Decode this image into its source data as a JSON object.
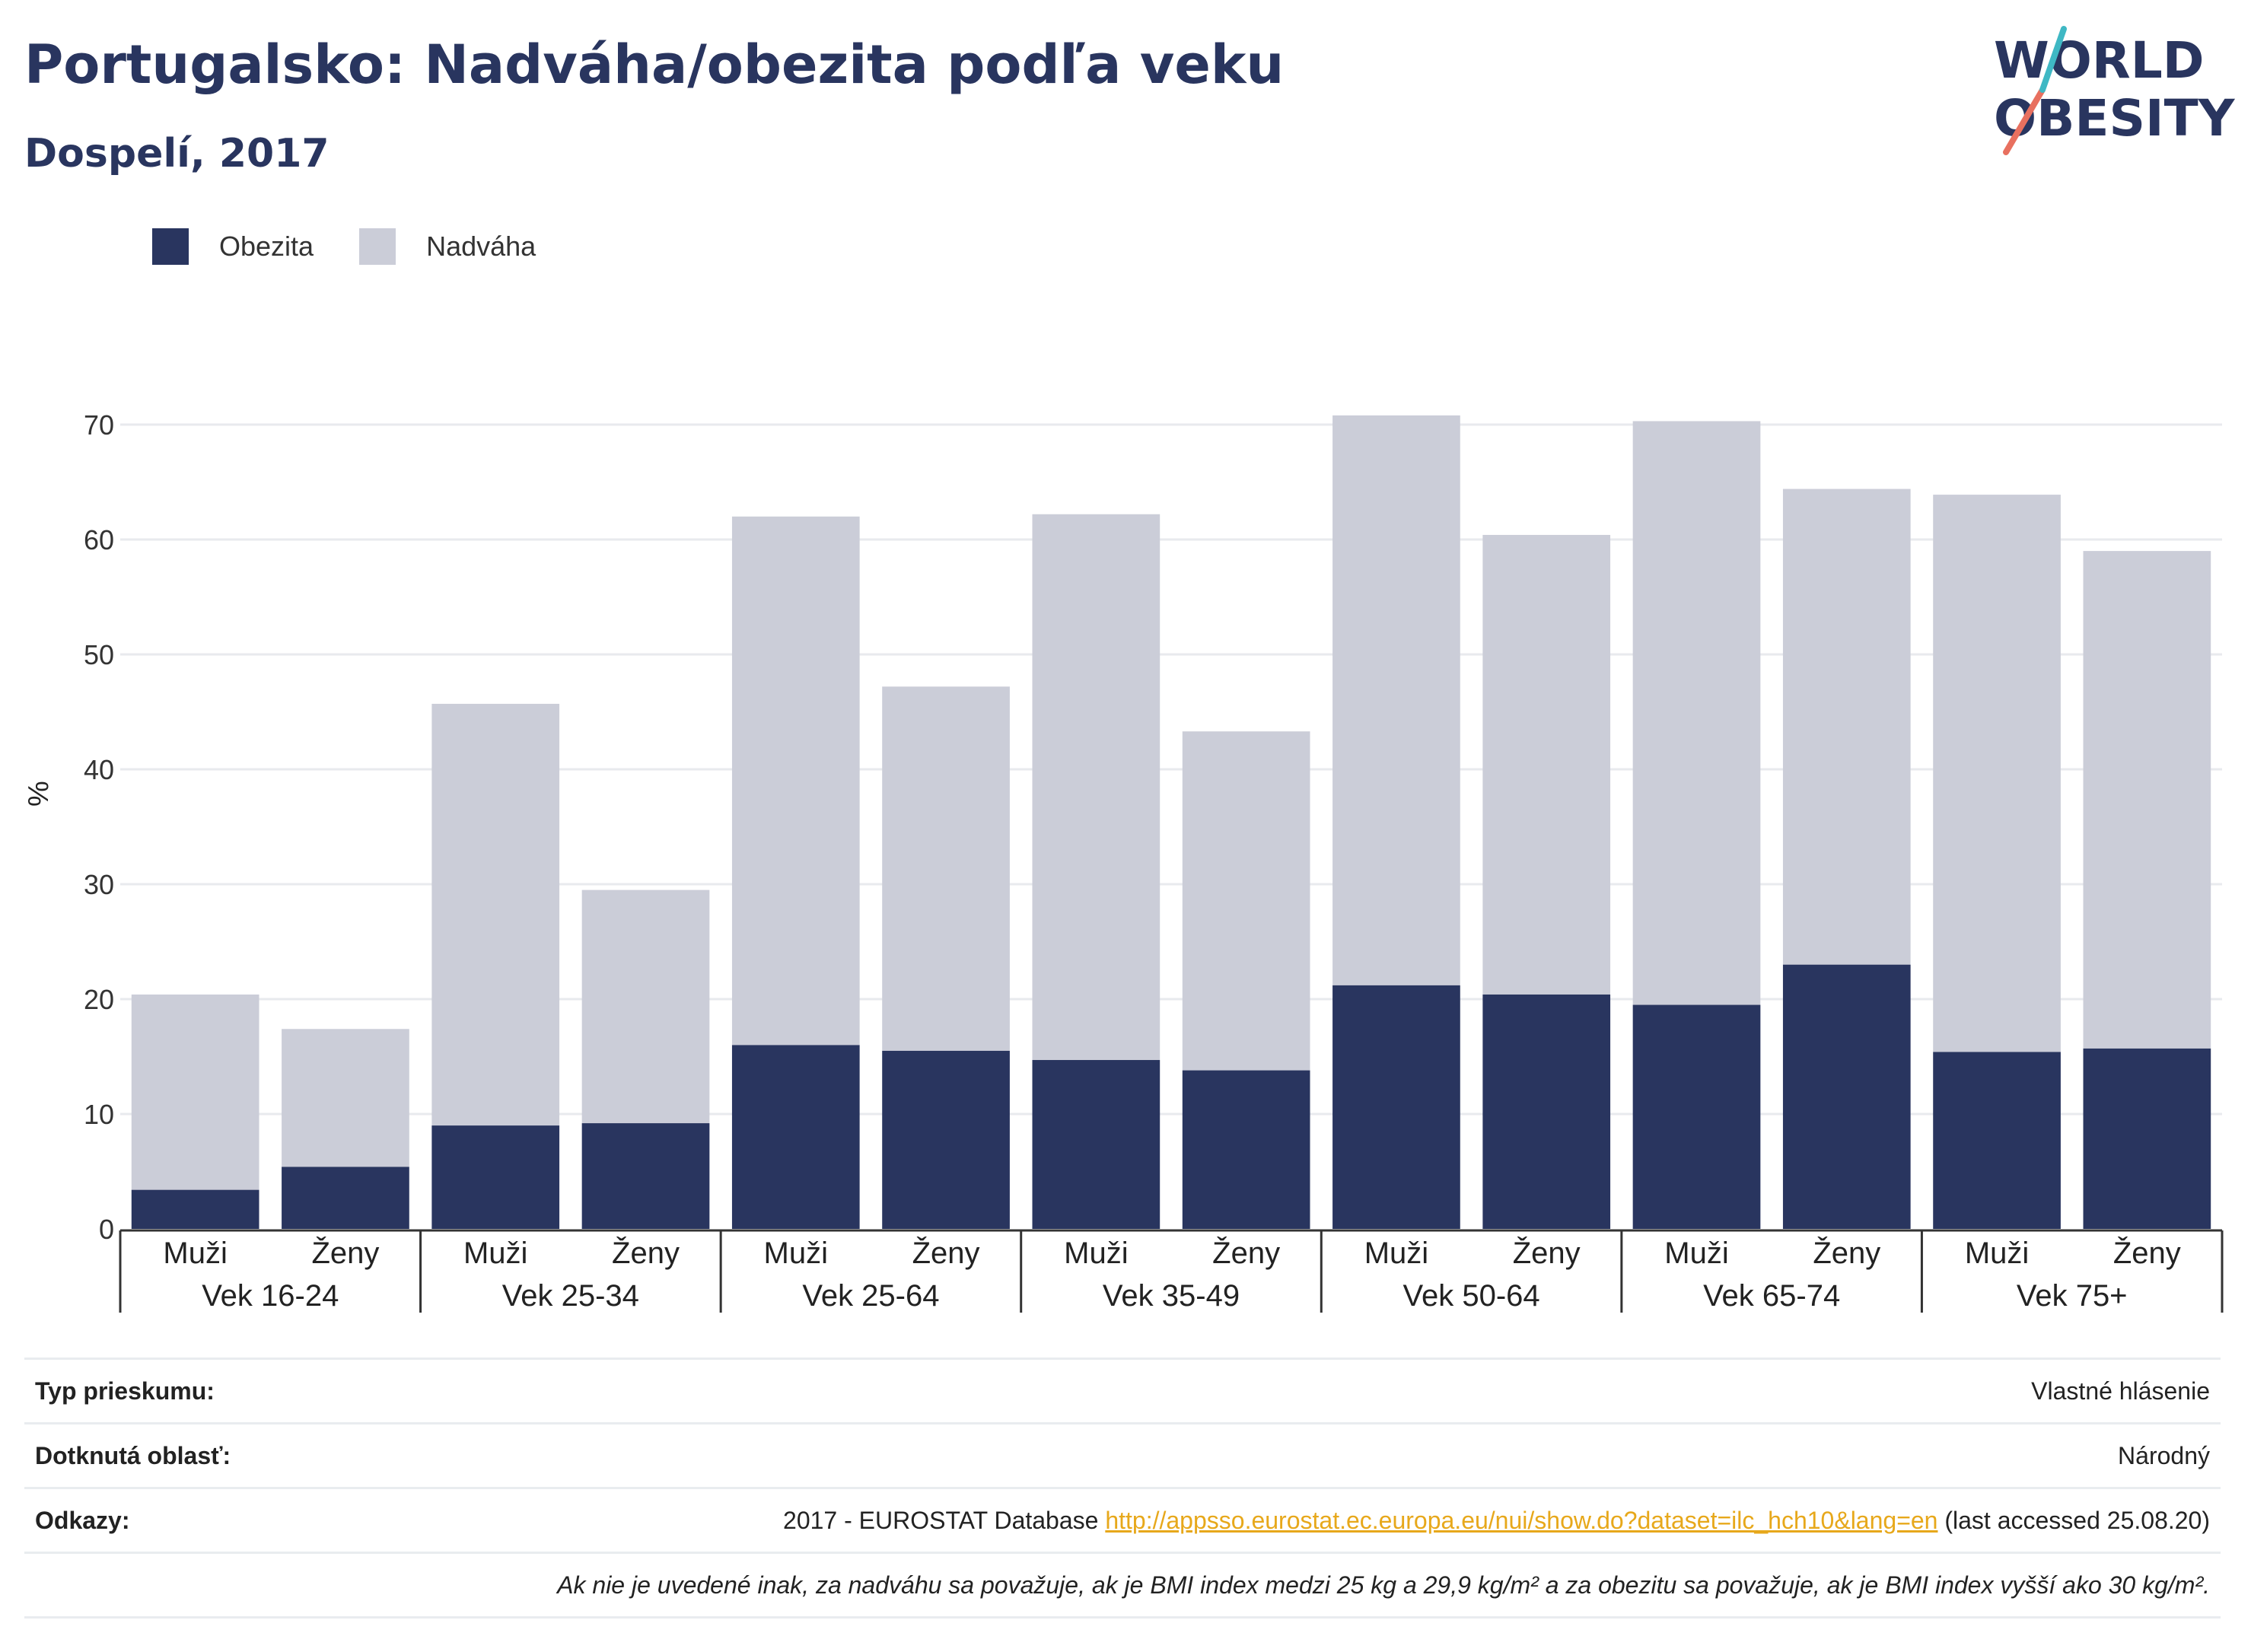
{
  "header": {
    "title": "Portugalsko: Nadváha/obezita podľa veku",
    "subtitle": "Dospelí, 2017",
    "logo_line1": "WORLD",
    "logo_line2": "OBESITY"
  },
  "legend": {
    "obesity_label": "Obezita",
    "overweight_label": "Nadváha"
  },
  "colors": {
    "obesity": "#29355f",
    "overweight": "#cbcdd8",
    "link": "#e7a81b"
  },
  "chart_data": {
    "type": "bar",
    "stacked": true,
    "ylabel": "%",
    "ylim": [
      0,
      70
    ],
    "yticks": [
      0,
      10,
      20,
      30,
      40,
      50,
      60,
      70
    ],
    "groups": [
      "Vek 16-24",
      "Vek 25-34",
      "Vek 25-64",
      "Vek 35-49",
      "Vek 50-64",
      "Vek 65-74",
      "Vek 75+"
    ],
    "sexes": [
      "Muži",
      "Ženy"
    ],
    "series": [
      {
        "name": "Obezita",
        "values": [
          3.4,
          5.4,
          9.0,
          9.2,
          16.0,
          15.5,
          14.7,
          13.8,
          21.2,
          20.4,
          19.5,
          23.0,
          15.4,
          15.7
        ]
      },
      {
        "name": "Nadváha",
        "values": [
          17.0,
          12.0,
          36.7,
          20.3,
          46.0,
          31.7,
          47.5,
          29.5,
          49.6,
          40.0,
          50.8,
          41.4,
          48.5,
          43.3
        ]
      }
    ]
  },
  "info": {
    "survey_label": "Typ prieskumu:",
    "survey_value": "Vlastné hlásenie",
    "area_label": "Dotknutá oblasť:",
    "area_value": "Národný",
    "refs_label": "Odkazy:",
    "refs_prefix": "2017 - EUROSTAT Database",
    "refs_link": "http://appsso.eurostat.ec.europa.eu/nui/show.do?dataset=ilc_hch10&lang=en",
    "refs_suffix": "(last accessed 25.08.20)",
    "note": "Ak nie je uvedené inak, za nadváhu sa považuje, ak je BMI index medzi 25 kg a 29,9 kg/m² a za obezitu sa považuje, ak je BMI index vyšší ako 30 kg/m²."
  }
}
